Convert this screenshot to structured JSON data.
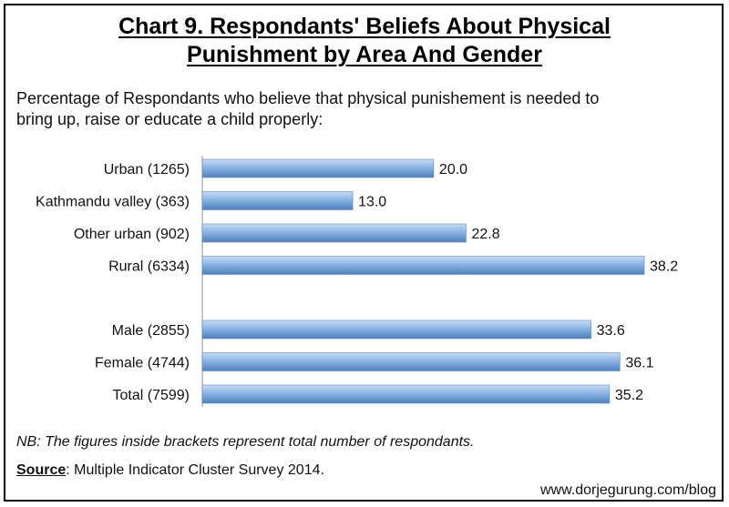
{
  "title_line1": "Chart 9. Respondants' Beliefs About Physical",
  "title_line2": "Punishment by Area And Gender",
  "subtitle_line1": "Percentage of Respondants who believe that physical punishement is needed to",
  "subtitle_line2": "bring up, raise or educate a child properly:",
  "note": "NB: The figures inside brackets represent total number of respondants.",
  "source_label": "Source",
  "source_text": ": Multiple Indicator Cluster Survey 2014.",
  "website": "www.dorjegurung.com/blog",
  "colors": {
    "bar_top": "#c7dcf3",
    "bar_mid": "#8bb3e3",
    "bar_bottom": "#4f81bd",
    "bar_edge": "#5b8ac6"
  },
  "chart_data": {
    "type": "bar",
    "orientation": "horizontal",
    "categories": [
      "Urban (1265)",
      "Kathmandu valley (363)",
      "Other urban (902)",
      "Rural (6334)",
      "Male (2855)",
      "Female (4744)",
      "Total (7599)"
    ],
    "values": [
      20.0,
      13.0,
      22.8,
      38.2,
      33.6,
      36.1,
      35.2
    ],
    "value_labels": [
      "20.0",
      "13.0",
      "22.8",
      "38.2",
      "33.6",
      "36.1",
      "35.2"
    ],
    "groups": [
      [
        0,
        1,
        2,
        3
      ],
      [
        4,
        5,
        6
      ]
    ],
    "xlim": [
      0,
      38.2
    ],
    "grid": false,
    "legend": "none"
  }
}
